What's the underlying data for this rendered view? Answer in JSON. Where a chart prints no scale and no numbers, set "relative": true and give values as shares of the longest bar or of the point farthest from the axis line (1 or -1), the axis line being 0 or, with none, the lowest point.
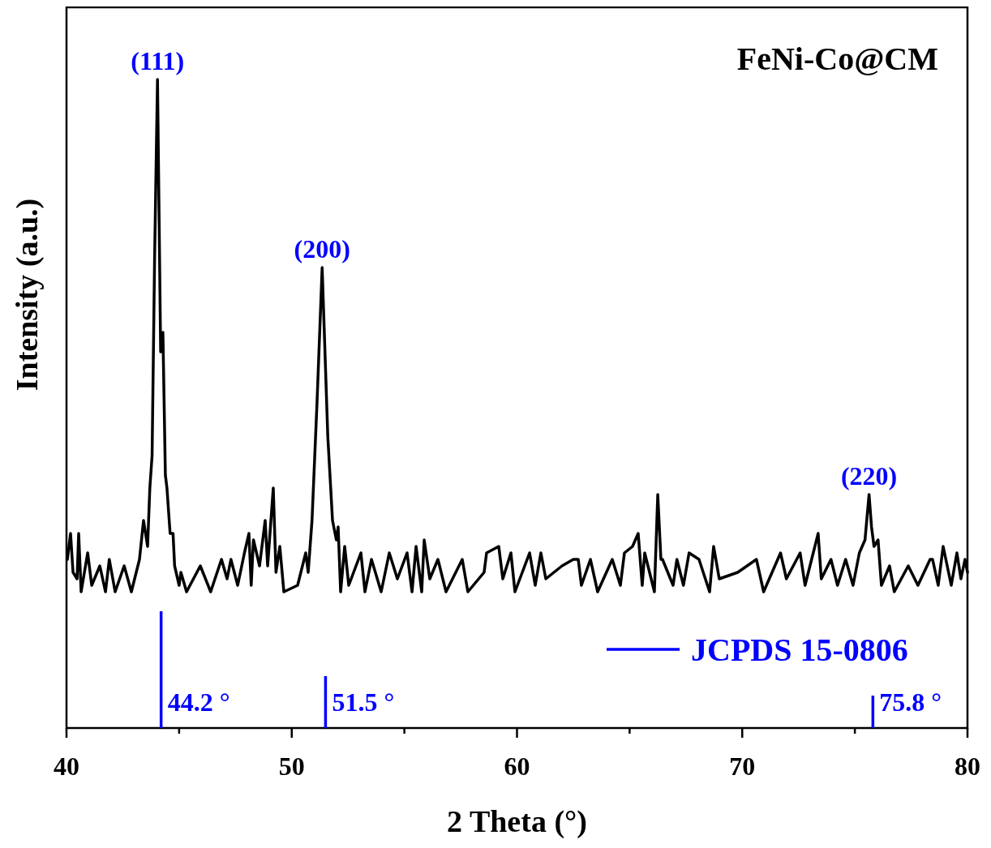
{
  "chart_data": {
    "type": "line",
    "xlabel": "2 Theta (°)",
    "ylabel": "Intensity (a.u.)",
    "relative": true,
    "xlim": [
      40,
      80
    ],
    "xticks": [
      40,
      {
        "value": 45,
        "label": null
      },
      50,
      {
        "value": 55,
        "label": null
      },
      60,
      {
        "value": 65,
        "label": null
      },
      70,
      {
        "value": 75,
        "label": null
      },
      80
    ],
    "legend": "bottom right",
    "annotations": [
      "FeNi-Co@CM",
      {
        "text": "(111)",
        "x": 44.04,
        "y": 1
      },
      {
        "text": "(200)",
        "x": 51.35,
        "y": 0.71
      },
      {
        "text": "(220)",
        "x": 75.63,
        "y": 0.36
      },
      {
        "text": "44.2 °",
        "x": 44.2,
        "y": 0.04
      },
      {
        "text": "51.5 °",
        "x": 51.5,
        "y": 0.04
      },
      {
        "text": "75.8 °",
        "x": 75.8,
        "y": 0.04
      }
    ],
    "series": [
      {
        "type": "line",
        "color": "#000000",
        "x": [
          40.04,
          40.18,
          40.29,
          40.47,
          40.54,
          40.65,
          40.94,
          41.12,
          41.48,
          41.73,
          41.9,
          42.16,
          42.56,
          42.88,
          43.24,
          43.42,
          43.6,
          43.7,
          43.8,
          43.91,
          44.04,
          44.18,
          44.28,
          44.39,
          44.46,
          44.6,
          44.73,
          44.8,
          45.0,
          45.08,
          45.33,
          45.94,
          46.4,
          46.88,
          47.13,
          47.3,
          47.6,
          47.9,
          48.1,
          48.2,
          48.3,
          48.57,
          48.82,
          48.93,
          49.18,
          49.3,
          49.47,
          49.65,
          50.26,
          50.62,
          50.73,
          50.9,
          51.12,
          51.35,
          51.6,
          51.81,
          51.98,
          52.06,
          52.17,
          52.35,
          52.53,
          53.07,
          53.25,
          53.54,
          53.97,
          54.33,
          54.69,
          55.12,
          55.34,
          55.52,
          55.77,
          55.88,
          56.13,
          56.49,
          56.85,
          57.57,
          57.82,
          58.54,
          58.65,
          59.19,
          59.37,
          59.73,
          59.91,
          60.56,
          60.81,
          61.06,
          61.28,
          62.0,
          62.5,
          62.72,
          62.86,
          63.26,
          63.58,
          64.23,
          64.59,
          64.77,
          65.13,
          65.38,
          65.56,
          65.67,
          66.1,
          66.25,
          66.39,
          66.46,
          66.93,
          67.1,
          67.39,
          67.64,
          68.08,
          68.55,
          68.73,
          68.98,
          69.8,
          70.63,
          70.95,
          71.7,
          71.96,
          72.57,
          72.79,
          73.37,
          73.51,
          73.94,
          74.23,
          74.59,
          74.92,
          75.2,
          75.45,
          75.63,
          75.74,
          75.85,
          76.03,
          76.18,
          76.54,
          76.75,
          77.37,
          77.8,
          78.34,
          78.45,
          78.7,
          78.92,
          79.28,
          79.53,
          79.71,
          79.89,
          80.0
        ],
        "values": [
          0.26,
          0.3,
          0.24,
          0.23,
          0.3,
          0.21,
          0.27,
          0.22,
          0.25,
          0.21,
          0.26,
          0.21,
          0.25,
          0.21,
          0.26,
          0.32,
          0.28,
          0.37,
          0.42,
          0.72,
          1,
          0.58,
          0.61,
          0.39,
          0.37,
          0.3,
          0.3,
          0.25,
          0.22,
          0.24,
          0.21,
          0.25,
          0.21,
          0.26,
          0.23,
          0.26,
          0.22,
          0.27,
          0.3,
          0.22,
          0.29,
          0.25,
          0.32,
          0.25,
          0.37,
          0.24,
          0.28,
          0.21,
          0.22,
          0.27,
          0.24,
          0.32,
          0.5,
          0.71,
          0.45,
          0.32,
          0.29,
          0.31,
          0.21,
          0.28,
          0.22,
          0.27,
          0.21,
          0.26,
          0.21,
          0.27,
          0.23,
          0.27,
          0.21,
          0.28,
          0.21,
          0.29,
          0.23,
          0.26,
          0.21,
          0.26,
          0.21,
          0.24,
          0.27,
          0.28,
          0.23,
          0.27,
          0.21,
          0.27,
          0.22,
          0.27,
          0.23,
          0.25,
          0.26,
          0.26,
          0.22,
          0.26,
          0.21,
          0.26,
          0.22,
          0.27,
          0.28,
          0.3,
          0.22,
          0.27,
          0.21,
          0.36,
          0.26,
          0.26,
          0.22,
          0.26,
          0.22,
          0.27,
          0.26,
          0.21,
          0.28,
          0.23,
          0.24,
          0.26,
          0.21,
          0.27,
          0.23,
          0.27,
          0.22,
          0.3,
          0.23,
          0.26,
          0.22,
          0.26,
          0.22,
          0.27,
          0.29,
          0.36,
          0.31,
          0.28,
          0.29,
          0.22,
          0.25,
          0.21,
          0.25,
          0.22,
          0.26,
          0.26,
          0.22,
          0.28,
          0.22,
          0.27,
          0.23,
          0.26,
          0.24
        ]
      },
      {
        "type": "bar",
        "name": "JCPDS 15-0806",
        "color": "#0000ff",
        "x": [
          44.2,
          51.5,
          75.8
        ],
        "values": [
          0.18,
          0.08,
          0.05
        ]
      }
    ]
  }
}
